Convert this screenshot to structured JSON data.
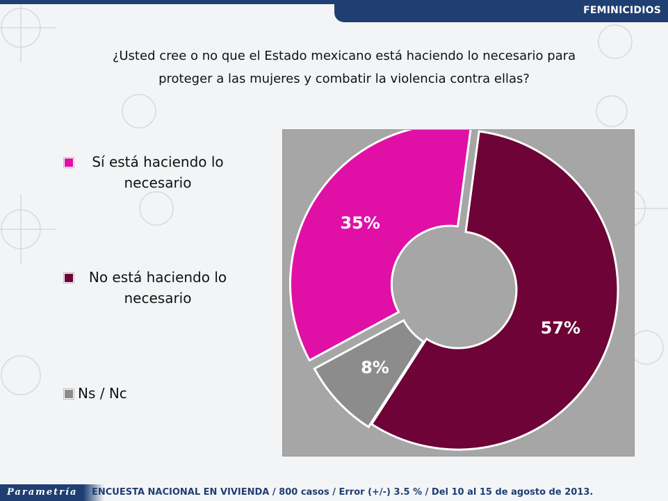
{
  "header": {
    "section": "FEMINICIDIOS"
  },
  "question": {
    "line1": "¿Usted cree o no que el Estado mexicano está haciendo lo necesario para",
    "line2": "proteger a las mujeres y combatir la violencia contra ellas?"
  },
  "colors": {
    "si": "#e010a6",
    "no": "#6d0336",
    "ns": "#8c8c8c",
    "brand": "#1f3f73",
    "chart_bg": "#a6a6a6"
  },
  "chart_data": {
    "type": "pie",
    "donut": true,
    "categories": [
      {
        "line1": "Sí está haciendo lo",
        "line2": "necesario"
      },
      {
        "line1": "No está haciendo lo",
        "line2": "necesario"
      },
      {
        "line1": "Ns / Nc",
        "line2": ""
      }
    ],
    "values": [
      35,
      57,
      8
    ],
    "labels": [
      "35%",
      "57%",
      "8%"
    ],
    "legend_position": "left"
  },
  "footer": {
    "logo": "Parametría",
    "note": "ENCUESTA NACIONAL EN VIVIENDA / 800 casos / Error (+/-) 3.5 % / Del 10 al 15 de agosto de 2013."
  }
}
